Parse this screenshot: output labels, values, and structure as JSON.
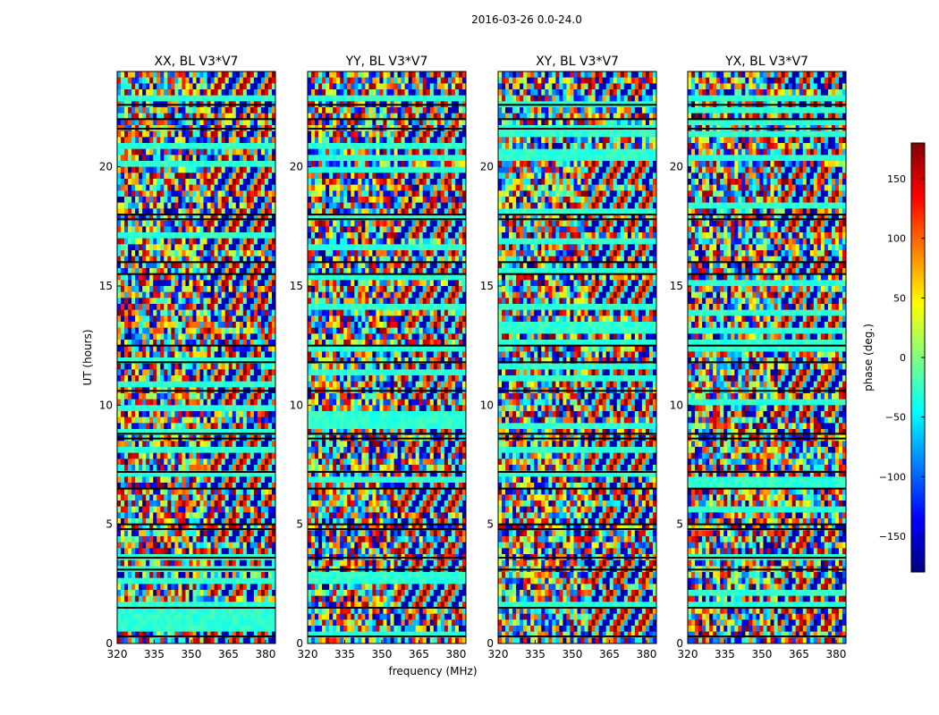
{
  "figure": {
    "suptitle": "2016-03-26 0.0-24.0",
    "xlabel": "frequency (MHz)",
    "ylabel": "UT (hours)",
    "colorbar_label": "phase (deg.)",
    "colormap": "jet"
  },
  "chart_data": [
    {
      "type": "heatmap",
      "title": "XX, BL V3*V7",
      "x": {
        "ticks": [
          320,
          335,
          350,
          365,
          380
        ],
        "lim": [
          320,
          384
        ]
      },
      "y": {
        "ticks": [
          0,
          5,
          10,
          15,
          20
        ],
        "lim": [
          0,
          24
        ]
      },
      "values": "phase per (frequency, UT) cell; dense noisy fringes"
    },
    {
      "type": "heatmap",
      "title": "YY, BL V3*V7",
      "x": {
        "ticks": [
          320,
          335,
          350,
          365,
          380
        ],
        "lim": [
          320,
          384
        ]
      },
      "y": {
        "ticks": [
          0,
          5,
          10,
          15,
          20
        ],
        "lim": [
          0,
          24
        ]
      },
      "values": "phase per (frequency, UT) cell; dense noisy fringes"
    },
    {
      "type": "heatmap",
      "title": "XY, BL V3*V7",
      "x": {
        "ticks": [
          320,
          335,
          350,
          365,
          380
        ],
        "lim": [
          320,
          384
        ]
      },
      "y": {
        "ticks": [
          0,
          5,
          10,
          15,
          20
        ],
        "lim": [
          0,
          24
        ]
      },
      "values": "phase per (frequency, UT) cell; dense noisy fringes"
    },
    {
      "type": "heatmap",
      "title": "YX, BL V3*V7",
      "x": {
        "ticks": [
          320,
          335,
          350,
          365,
          380
        ],
        "lim": [
          320,
          384
        ]
      },
      "y": {
        "ticks": [
          0,
          5,
          10,
          15,
          20
        ],
        "lim": [
          0,
          24
        ]
      },
      "values": "phase per (frequency, UT) cell; dense noisy fringes"
    }
  ],
  "colorbar": {
    "ticks": [
      150,
      100,
      50,
      0,
      -50,
      -100,
      -150
    ],
    "tick_labels": [
      "150",
      "100",
      "50",
      "0",
      "−50",
      "−100",
      "−150"
    ],
    "lim": [
      -180,
      180
    ]
  }
}
